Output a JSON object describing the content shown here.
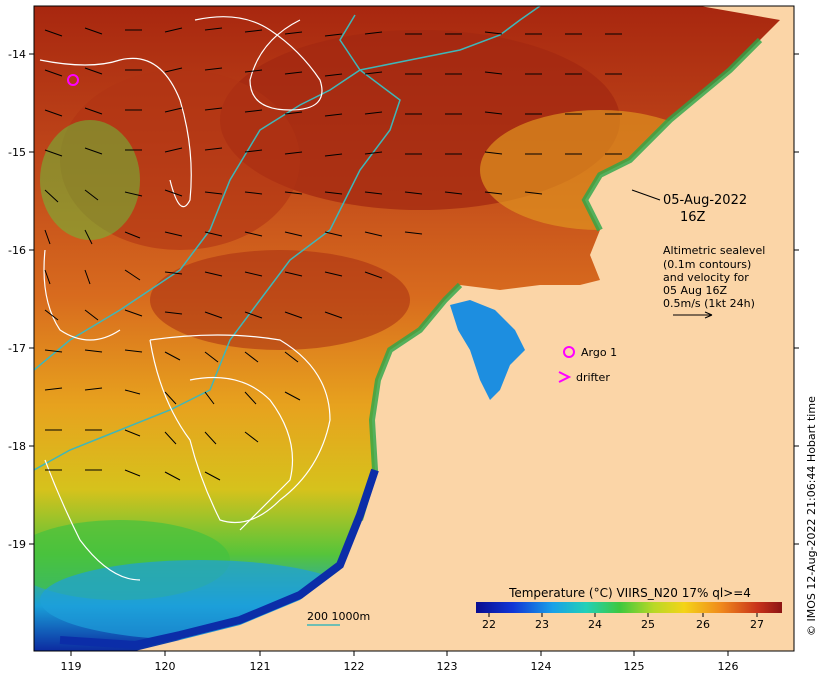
{
  "date_label": {
    "line1": "05-Aug-2022",
    "line2": "16Z"
  },
  "description": [
    "Altimetric sealevel",
    "(0.1m contours)",
    "and velocity for",
    "05 Aug 16Z",
    "0.5m/s (1kt 24h)"
  ],
  "legend": {
    "argo": "Argo 1",
    "drifter": "drifter"
  },
  "isobath_label": "200  1000m",
  "colorbar": {
    "title": "Temperature (°C) VIIRS_N20 17% ql>=4",
    "ticks": [
      "22",
      "23",
      "24",
      "25",
      "26",
      "27"
    ]
  },
  "x_ticks": [
    "119",
    "120",
    "121",
    "122",
    "123",
    "124",
    "125",
    "126"
  ],
  "y_ticks": [
    "-14",
    "-15",
    "-16",
    "-17",
    "-18",
    "-19"
  ],
  "credit": "© IMOS 12-Aug-2022 21:06:44 Hobart time",
  "colors": {
    "land": "#fbd5a7",
    "warm": "#a42a12",
    "mid": "#e87a22",
    "cool": "#2f9de0",
    "coast_deep": "#0b2da8",
    "isobath": "#3fb7b9",
    "contour": "#ffffff",
    "argo": "#ff00ff"
  },
  "chart_data": {
    "type": "heatmap",
    "title": "Temperature (°C) VIIRS_N20 17% ql>=4",
    "x_range": [
      118.6,
      126.7
    ],
    "y_range": [
      -20.1,
      -13.6
    ],
    "color_range": [
      21.7,
      27.5
    ],
    "argo_floats": [
      {
        "label": "Argo 1",
        "lon": 119.05,
        "lat": -14.27
      }
    ]
  }
}
